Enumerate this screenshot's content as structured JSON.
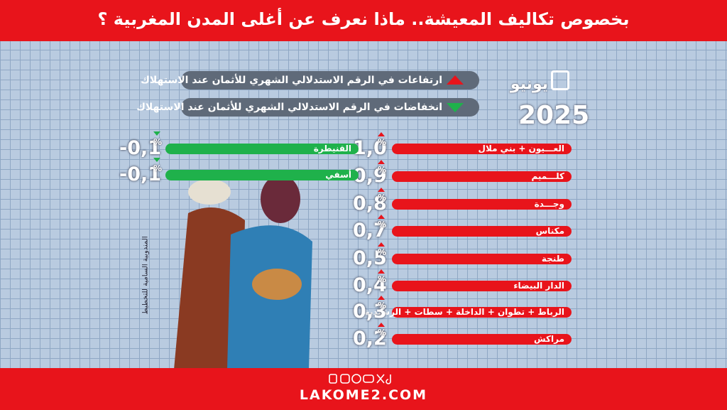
{
  "header": {
    "title": "بخصوص تكاليف المعيشة.. ماذا نعرف عن أغلى المدن المغربية ؟"
  },
  "legend": {
    "increase": "ارتفاعات في الرقم الاستدلالي الشهري للأثمان عند الاستهلاك",
    "decrease": "انخفاضات في الرقم الاستدلالي الشهري للأثمان عند الاستهلاك"
  },
  "date": {
    "month": "يونيو",
    "year": "2025"
  },
  "unit": "%",
  "increases": [
    {
      "city": "العـــيون + بني ملال",
      "value": "1,0"
    },
    {
      "city": "كلـــميم",
      "value": "0,9"
    },
    {
      "city": "وجـــدة",
      "value": "0,8"
    },
    {
      "city": "مكناس",
      "value": "0,7"
    },
    {
      "city": "طنجة",
      "value": "0,5"
    },
    {
      "city": "الدار البيضاء",
      "value": "0,4"
    },
    {
      "city": "الرباط + تطوان + الداخلة + سطات + الرشيدية",
      "value": "0,3"
    },
    {
      "city": "مراكش",
      "value": "0,2"
    }
  ],
  "decreases": [
    {
      "city": "القنيطرة",
      "value": "-0,1"
    },
    {
      "city": "أسفي",
      "value": "-0,1"
    }
  ],
  "source": "المندوبية السامية للتخطيط",
  "footer": {
    "site": "LAKOME2.COM"
  }
}
